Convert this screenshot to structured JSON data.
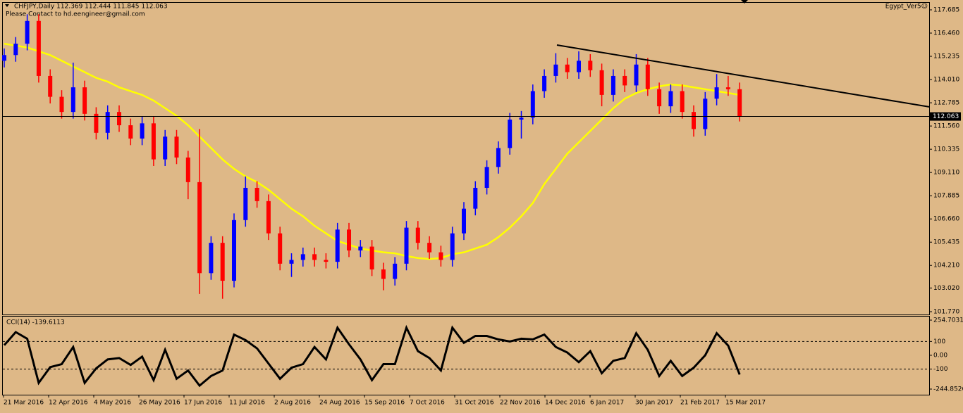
{
  "chart_data": [
    {
      "type": "candlestick",
      "title": "CHFJPY,Daily  112.369 112.444 111.845 112.063",
      "subtitle": "Please Contact to hd.eengineer@gmail.com",
      "annotation": "Egypt_Ver5☺",
      "up_color": "#0000ff",
      "down_color": "#ff0000",
      "candles": [
        [
          115.0,
          115.65,
          114.65,
          115.3
        ],
        [
          115.3,
          116.25,
          114.95,
          115.9
        ],
        [
          115.9,
          117.45,
          115.55,
          117.1
        ],
        [
          117.1,
          117.45,
          113.85,
          114.2
        ],
        [
          114.2,
          114.55,
          112.75,
          113.1
        ],
        [
          113.1,
          113.45,
          111.95,
          112.3
        ],
        [
          112.3,
          114.9,
          111.95,
          113.6
        ],
        [
          113.6,
          113.95,
          111.85,
          112.2
        ],
        [
          112.2,
          112.55,
          110.85,
          111.2
        ],
        [
          111.2,
          112.65,
          110.85,
          112.3
        ],
        [
          112.3,
          112.65,
          111.25,
          111.6
        ],
        [
          111.6,
          111.95,
          110.55,
          110.9
        ],
        [
          110.9,
          112.05,
          110.55,
          111.7
        ],
        [
          111.7,
          112.05,
          109.45,
          109.8
        ],
        [
          109.8,
          111.35,
          109.45,
          111.0
        ],
        [
          111.0,
          111.35,
          109.55,
          109.9
        ],
        [
          109.9,
          110.25,
          107.7,
          108.6
        ],
        [
          108.6,
          111.4,
          102.7,
          103.8
        ],
        [
          103.8,
          105.75,
          103.45,
          105.4
        ],
        [
          105.4,
          105.75,
          102.45,
          103.4
        ],
        [
          103.4,
          106.95,
          103.05,
          106.6
        ],
        [
          106.6,
          108.9,
          106.25,
          108.3
        ],
        [
          108.3,
          108.65,
          107.25,
          107.6
        ],
        [
          107.6,
          107.95,
          105.55,
          105.9
        ],
        [
          105.9,
          106.25,
          103.95,
          104.3
        ],
        [
          104.3,
          104.85,
          103.6,
          104.5
        ],
        [
          104.5,
          105.15,
          104.15,
          104.8
        ],
        [
          104.8,
          105.15,
          104.15,
          104.5
        ],
        [
          104.5,
          104.85,
          104.05,
          104.4
        ],
        [
          104.4,
          106.45,
          104.05,
          106.1
        ],
        [
          106.1,
          106.45,
          104.65,
          105.0
        ],
        [
          105.0,
          105.55,
          104.65,
          105.2
        ],
        [
          105.2,
          105.55,
          103.65,
          104.0
        ],
        [
          104.0,
          104.35,
          102.9,
          103.5
        ],
        [
          103.5,
          104.65,
          103.15,
          104.3
        ],
        [
          104.3,
          106.55,
          103.95,
          106.2
        ],
        [
          106.2,
          106.55,
          105.05,
          105.4
        ],
        [
          105.4,
          105.75,
          104.55,
          104.9
        ],
        [
          104.9,
          105.25,
          104.15,
          104.5
        ],
        [
          104.5,
          106.25,
          104.15,
          105.9
        ],
        [
          105.9,
          107.55,
          105.55,
          107.2
        ],
        [
          107.2,
          108.65,
          106.85,
          108.3
        ],
        [
          108.3,
          109.75,
          107.95,
          109.4
        ],
        [
          109.4,
          110.75,
          109.05,
          110.4
        ],
        [
          110.4,
          112.25,
          110.05,
          111.9
        ],
        [
          111.9,
          112.35,
          110.9,
          112.0
        ],
        [
          112.0,
          113.75,
          111.65,
          113.4
        ],
        [
          113.4,
          114.55,
          113.05,
          114.2
        ],
        [
          114.2,
          115.4,
          113.85,
          114.8
        ],
        [
          114.8,
          115.15,
          114.05,
          114.4
        ],
        [
          114.4,
          115.5,
          114.05,
          115.0
        ],
        [
          115.0,
          115.35,
          114.15,
          114.5
        ],
        [
          114.5,
          114.85,
          112.6,
          113.2
        ],
        [
          113.2,
          114.55,
          112.85,
          114.2
        ],
        [
          114.2,
          114.55,
          113.35,
          113.7
        ],
        [
          113.7,
          115.35,
          113.35,
          114.8
        ],
        [
          114.8,
          115.15,
          113.15,
          113.5
        ],
        [
          113.5,
          113.85,
          112.2,
          112.6
        ],
        [
          112.6,
          113.75,
          112.25,
          113.4
        ],
        [
          113.4,
          113.75,
          111.95,
          112.3
        ],
        [
          112.3,
          112.65,
          111.0,
          111.4
        ],
        [
          111.4,
          113.35,
          111.05,
          113.0
        ],
        [
          113.0,
          114.3,
          112.65,
          113.6
        ],
        [
          113.6,
          114.2,
          113.15,
          113.5
        ],
        [
          113.5,
          113.85,
          111.8,
          112.063
        ]
      ],
      "ma": {
        "color": "#ffff00",
        "values": [
          115.9,
          115.8,
          115.7,
          115.5,
          115.3,
          115.0,
          114.7,
          114.4,
          114.1,
          113.9,
          113.6,
          113.4,
          113.2,
          112.9,
          112.5,
          112.1,
          111.6,
          111.0,
          110.4,
          109.8,
          109.3,
          108.9,
          108.6,
          108.2,
          107.7,
          107.2,
          106.8,
          106.3,
          105.9,
          105.5,
          105.3,
          105.1,
          105.0,
          104.9,
          104.85,
          104.7,
          104.6,
          104.55,
          104.6,
          104.8,
          104.9,
          105.1,
          105.3,
          105.7,
          106.2,
          106.8,
          107.5,
          108.5,
          109.3,
          110.1,
          110.7,
          111.3,
          111.9,
          112.5,
          113.0,
          113.3,
          113.5,
          113.65,
          113.75,
          113.7,
          113.6,
          113.5,
          113.4,
          113.3,
          113.2
        ]
      },
      "trendline": {
        "color": "#000000",
        "values": [
          115.83,
          112.57
        ]
      },
      "last_price": 112.063,
      "ylim": [
        101.77,
        117.685
      ],
      "yticks": [
        117.685,
        {
          "value": 116.46,
          "label": "116.460"
        },
        115.235,
        {
          "value": 114.01,
          "label": "114.010"
        },
        112.785,
        {
          "value": 111.56,
          "label": "111.560"
        },
        110.335,
        {
          "value": 109.11,
          "label": "109.110"
        },
        107.885,
        {
          "value": 106.66,
          "label": "106.660"
        },
        105.435,
        {
          "value": 104.21,
          "label": "104.210"
        },
        {
          "value": 103.02,
          "label": "103.020"
        },
        {
          "value": 101.77,
          "label": "101.770"
        }
      ],
      "x_labels": [
        "21 Mar 2016",
        "12 Apr 2016",
        "4 May 2016",
        "26 May 2016",
        "17 Jun 2016",
        "11 Jul 2016",
        "2 Aug 2016",
        "24 Aug 2016",
        "15 Sep 2016",
        "7 Oct 2016",
        "31 Oct 2016",
        "22 Nov 2016",
        "14 Dec 2016",
        "6 Jan 2017",
        "30 Jan 2017",
        "21 Feb 2017",
        "15 Mar 2017"
      ]
    },
    {
      "type": "line",
      "title": "CCI(14) -139.6113",
      "color": "#000000",
      "values": [
        73,
        168,
        120,
        -200,
        -86,
        -64,
        60,
        -200,
        -95,
        -30,
        -20,
        -70,
        -10,
        -180,
        40,
        -170,
        -110,
        -220,
        -150,
        -110,
        150,
        110,
        50,
        -60,
        -170,
        -90,
        -64,
        60,
        -30,
        200,
        80,
        -30,
        -180,
        -64,
        -64,
        200,
        30,
        -20,
        -110,
        200,
        90,
        140,
        140,
        115,
        100,
        120,
        115,
        150,
        60,
        20,
        -50,
        30,
        -130,
        -40,
        -20,
        160,
        40,
        -150,
        -40,
        -150,
        -90,
        0,
        160,
        70,
        -139.6113
      ],
      "levels": [
        100,
        -100
      ],
      "ylim": [
        -244.8526,
        254.7031
      ],
      "yticks": [
        254.7031,
        100,
        {
          "value": 0,
          "label": "0.00"
        },
        -100,
        -244.8526
      ]
    }
  ]
}
